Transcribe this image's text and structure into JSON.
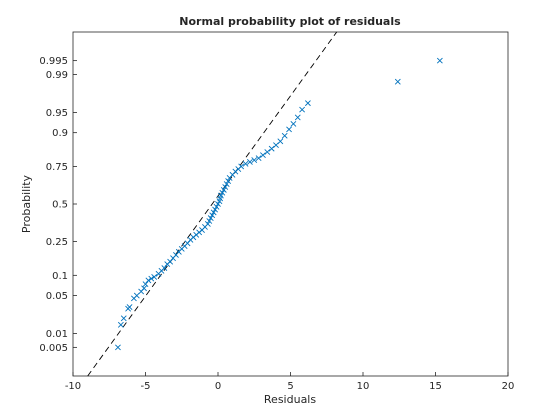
{
  "chart_data": {
    "type": "scatter",
    "title": "Normal probability plot of residuals",
    "xlabel": "Residuals",
    "ylabel": "Probability",
    "xlim": [
      -10,
      20
    ],
    "ylim": [
      0.001,
      0.999
    ],
    "y_scale": "normal-probability",
    "grid": false,
    "legend": "none",
    "marker": "x",
    "colors": {
      "points": "#0072BD",
      "reference_line": "#000000",
      "axes": "#262626"
    },
    "x_ticks": [
      {
        "value": -10,
        "label": "-10"
      },
      {
        "value": -5,
        "label": "-5"
      },
      {
        "value": 0,
        "label": "0"
      },
      {
        "value": 5,
        "label": "5"
      },
      {
        "value": 10,
        "label": "10"
      },
      {
        "value": 15,
        "label": "15"
      },
      {
        "value": 20,
        "label": "20"
      }
    ],
    "y_ticks": [
      {
        "value": 0.005,
        "label": "0.005"
      },
      {
        "value": 0.01,
        "label": "0.01"
      },
      {
        "value": 0.05,
        "label": "0.05"
      },
      {
        "value": 0.1,
        "label": "0.1"
      },
      {
        "value": 0.25,
        "label": "0.25"
      },
      {
        "value": 0.5,
        "label": "0.5"
      },
      {
        "value": 0.75,
        "label": "0.75"
      },
      {
        "value": 0.9,
        "label": "0.9"
      },
      {
        "value": 0.95,
        "label": "0.95"
      },
      {
        "value": 0.99,
        "label": "0.99"
      },
      {
        "value": 0.995,
        "label": "0.995"
      }
    ],
    "reference_line": [
      [
        -9.4,
        0.0006
      ],
      [
        8.6,
        0.9994
      ]
    ],
    "points": [
      [
        -6.9,
        0.005
      ],
      [
        -6.7,
        0.015
      ],
      [
        -6.5,
        0.02
      ],
      [
        -6.2,
        0.03
      ],
      [
        -6.1,
        0.032
      ],
      [
        -5.8,
        0.045
      ],
      [
        -5.6,
        0.05
      ],
      [
        -5.3,
        0.058
      ],
      [
        -5.1,
        0.065
      ],
      [
        -5.0,
        0.075
      ],
      [
        -4.8,
        0.085
      ],
      [
        -4.6,
        0.09
      ],
      [
        -4.4,
        0.095
      ],
      [
        -4.1,
        0.105
      ],
      [
        -3.9,
        0.115
      ],
      [
        -3.7,
        0.125
      ],
      [
        -3.5,
        0.14
      ],
      [
        -3.3,
        0.15
      ],
      [
        -3.1,
        0.165
      ],
      [
        -2.9,
        0.18
      ],
      [
        -2.7,
        0.195
      ],
      [
        -2.5,
        0.21
      ],
      [
        -2.3,
        0.225
      ],
      [
        -2.1,
        0.24
      ],
      [
        -1.9,
        0.26
      ],
      [
        -1.7,
        0.275
      ],
      [
        -1.5,
        0.29
      ],
      [
        -1.3,
        0.305
      ],
      [
        -1.1,
        0.32
      ],
      [
        -0.9,
        0.34
      ],
      [
        -0.7,
        0.36
      ],
      [
        -0.6,
        0.38
      ],
      [
        -0.5,
        0.4
      ],
      [
        -0.4,
        0.42
      ],
      [
        -0.3,
        0.44
      ],
      [
        -0.2,
        0.46
      ],
      [
        -0.1,
        0.48
      ],
      [
        0.0,
        0.5
      ],
      [
        0.1,
        0.52
      ],
      [
        0.15,
        0.54
      ],
      [
        0.2,
        0.56
      ],
      [
        0.3,
        0.58
      ],
      [
        0.4,
        0.6
      ],
      [
        0.5,
        0.62
      ],
      [
        0.6,
        0.64
      ],
      [
        0.7,
        0.66
      ],
      [
        0.8,
        0.68
      ],
      [
        1.0,
        0.7
      ],
      [
        1.2,
        0.72
      ],
      [
        1.4,
        0.735
      ],
      [
        1.6,
        0.75
      ],
      [
        1.9,
        0.765
      ],
      [
        2.2,
        0.775
      ],
      [
        2.5,
        0.785
      ],
      [
        2.8,
        0.795
      ],
      [
        3.1,
        0.81
      ],
      [
        3.4,
        0.825
      ],
      [
        3.7,
        0.84
      ],
      [
        4.0,
        0.855
      ],
      [
        4.3,
        0.87
      ],
      [
        4.6,
        0.89
      ],
      [
        4.9,
        0.91
      ],
      [
        5.2,
        0.925
      ],
      [
        5.5,
        0.94
      ],
      [
        5.8,
        0.955
      ],
      [
        6.2,
        0.965
      ],
      [
        12.4,
        0.986
      ],
      [
        15.3,
        0.995
      ]
    ]
  }
}
